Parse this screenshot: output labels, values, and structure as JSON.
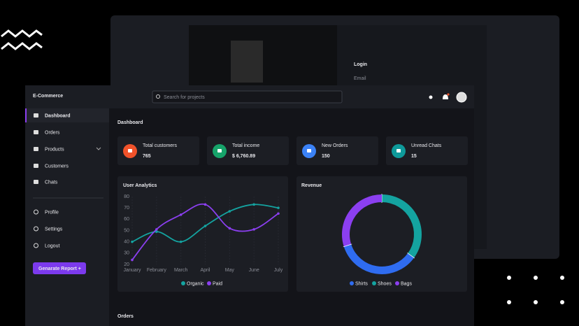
{
  "login": {
    "title": "Login",
    "email_label": "Email"
  },
  "app": {
    "brand": "E-Commerce",
    "search_placeholder": "Search for projects"
  },
  "sidebar": {
    "menu": [
      "Dashboard",
      "Orders",
      "Products",
      "Customers",
      "Chats"
    ],
    "account": [
      "Profile",
      "Settings",
      "Logout"
    ],
    "button": "Genarate Report +"
  },
  "page_title": "Dashboard",
  "stats": [
    {
      "label": "Total customers",
      "value": "765",
      "color": "#f0522a"
    },
    {
      "label": "Total income",
      "value": "$ 6,760.89",
      "color": "#16a36a"
    },
    {
      "label": "New Orders",
      "value": "150",
      "color": "#3b82f6"
    },
    {
      "label": "Unread Chats",
      "value": "15",
      "color": "#0e9a9a"
    }
  ],
  "user_analytics": {
    "type": "line",
    "title": "User Analytics",
    "categories": [
      "January",
      "February",
      "March",
      "April",
      "May",
      "June",
      "July"
    ],
    "series": [
      {
        "name": "Organic",
        "color": "#14a3a0",
        "values": [
          40,
          49,
          40,
          54,
          67,
          73,
          70
        ]
      },
      {
        "name": "Paid",
        "color": "#8b3ff0",
        "values": [
          24,
          51,
          64,
          73,
          52,
          51,
          65
        ]
      }
    ],
    "ylim": [
      20,
      80
    ],
    "yticks": [
      20,
      30,
      40,
      50,
      60,
      70,
      80
    ]
  },
  "revenue": {
    "type": "pie",
    "title": "Revenue",
    "categories": [
      "Shirts",
      "Shoes",
      "Bags"
    ],
    "values": [
      35,
      35,
      30
    ],
    "colors": [
      "#2f6cf0",
      "#14a3a0",
      "#8b3ff0"
    ]
  },
  "orders_title": "Orders"
}
